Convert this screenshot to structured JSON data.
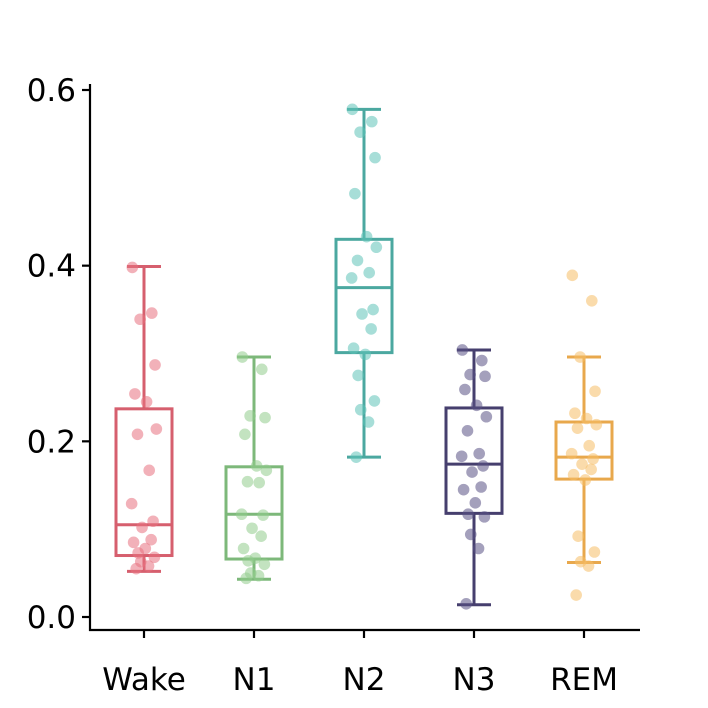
{
  "chart_data": {
    "type": "box",
    "title": "",
    "xlabel": "",
    "ylabel": "",
    "ylim": [
      -0.015,
      0.605
    ],
    "yticks": [
      {
        "value": 0.0,
        "label": "0.0"
      },
      {
        "value": 0.2,
        "label": "0.2"
      },
      {
        "value": 0.4,
        "label": "0.4"
      },
      {
        "value": 0.6,
        "label": "0.6"
      }
    ],
    "grid": false,
    "categories": [
      "Wake",
      "N1",
      "N2",
      "N3",
      "REM"
    ],
    "series": [
      {
        "category": "Wake",
        "color": "#D65F6E",
        "point_color": "#E8717F",
        "whisker_low": 0.052,
        "q1": 0.07,
        "median": 0.105,
        "q3": 0.237,
        "whisker_high": 0.399,
        "points": [
          0.398,
          0.346,
          0.339,
          0.287,
          0.254,
          0.245,
          0.214,
          0.208,
          0.167,
          0.129,
          0.109,
          0.102,
          0.088,
          0.085,
          0.078,
          0.073,
          0.068,
          0.063,
          0.058,
          0.055
        ]
      },
      {
        "category": "N1",
        "color": "#7DB87A",
        "point_color": "#92CC8C",
        "whisker_low": 0.043,
        "q1": 0.066,
        "median": 0.117,
        "q3": 0.171,
        "whisker_high": 0.296,
        "points": [
          0.296,
          0.282,
          0.229,
          0.227,
          0.208,
          0.172,
          0.167,
          0.154,
          0.153,
          0.117,
          0.116,
          0.101,
          0.092,
          0.078,
          0.067,
          0.064,
          0.06,
          0.05,
          0.047,
          0.044
        ]
      },
      {
        "category": "N2",
        "color": "#4BA8A0",
        "point_color": "#5EC2B8",
        "whisker_low": 0.182,
        "q1": 0.301,
        "median": 0.375,
        "q3": 0.43,
        "whisker_high": 0.578,
        "points": [
          0.578,
          0.564,
          0.552,
          0.523,
          0.482,
          0.433,
          0.421,
          0.406,
          0.392,
          0.386,
          0.35,
          0.345,
          0.328,
          0.306,
          0.299,
          0.275,
          0.246,
          0.236,
          0.222,
          0.182
        ]
      },
      {
        "category": "N3",
        "color": "#463F6E",
        "point_color": "#5A5285",
        "whisker_low": 0.014,
        "q1": 0.118,
        "median": 0.174,
        "q3": 0.238,
        "whisker_high": 0.304,
        "points": [
          0.304,
          0.292,
          0.276,
          0.274,
          0.259,
          0.241,
          0.228,
          0.212,
          0.186,
          0.183,
          0.172,
          0.165,
          0.148,
          0.145,
          0.13,
          0.117,
          0.114,
          0.094,
          0.078,
          0.015
        ]
      },
      {
        "category": "REM",
        "color": "#E8A84C",
        "point_color": "#F6BE66",
        "whisker_low": 0.062,
        "q1": 0.157,
        "median": 0.182,
        "q3": 0.222,
        "whisker_high": 0.296,
        "points": [
          0.389,
          0.36,
          0.296,
          0.257,
          0.232,
          0.226,
          0.219,
          0.215,
          0.195,
          0.186,
          0.18,
          0.174,
          0.168,
          0.162,
          0.156,
          0.092,
          0.074,
          0.063,
          0.058,
          0.025
        ]
      }
    ]
  }
}
